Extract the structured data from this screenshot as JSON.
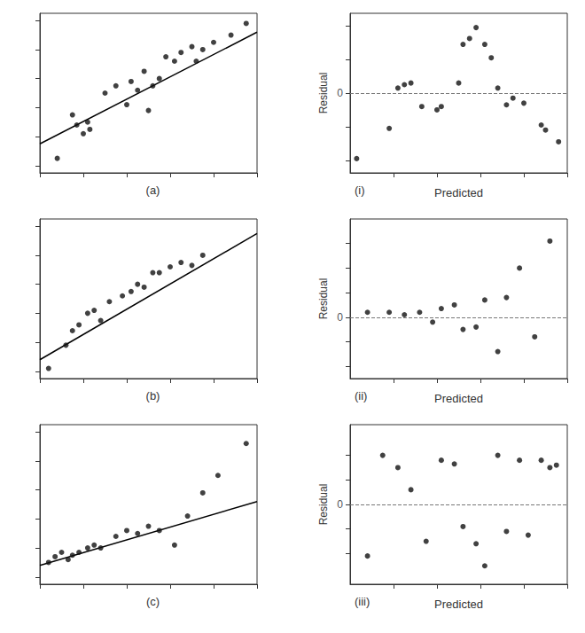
{
  "chart_data": [
    {
      "type": "scatter",
      "title": "(a)",
      "series": [
        {
          "type": "scatter",
          "marker": "circle",
          "color": "#111111",
          "x": [
            0.08,
            0.15,
            0.17,
            0.2,
            0.22,
            0.23,
            0.3,
            0.35,
            0.4,
            0.42,
            0.45,
            0.48,
            0.5,
            0.52,
            0.55,
            0.58,
            0.62,
            0.65,
            0.7,
            0.72,
            0.75,
            0.8,
            0.88,
            0.95
          ],
          "values": [
            0.05,
            0.35,
            0.28,
            0.22,
            0.3,
            0.25,
            0.5,
            0.55,
            0.42,
            0.58,
            0.52,
            0.65,
            0.38,
            0.55,
            0.6,
            0.75,
            0.72,
            0.78,
            0.82,
            0.72,
            0.8,
            0.85,
            0.9,
            0.98
          ]
        },
        {
          "type": "line",
          "line_style": "solid",
          "color": "#000000",
          "x": [
            0.0,
            1.0
          ],
          "values": [
            0.15,
            0.92
          ]
        }
      ],
      "xlim": [
        0,
        1
      ],
      "ylim": [
        -0.05,
        1.05
      ],
      "xticks": [
        0,
        0.2,
        0.4,
        0.6,
        0.8,
        1
      ],
      "yticks": [
        0,
        0.2,
        0.4,
        0.6,
        0.8,
        1
      ],
      "grid": false,
      "tick_labels": false
    },
    {
      "type": "scatter",
      "title": "(i)",
      "xlabel": "Predicted",
      "ylabel": "Residual",
      "series": [
        {
          "type": "scatter",
          "marker": "circle",
          "color": "#111111",
          "x": [
            0.03,
            0.18,
            0.22,
            0.25,
            0.28,
            0.33,
            0.4,
            0.42,
            0.5,
            0.52,
            0.55,
            0.58,
            0.62,
            0.65,
            0.68,
            0.72,
            0.75,
            0.8,
            0.88,
            0.9,
            0.96
          ],
          "values": [
            -0.78,
            -0.42,
            0.06,
            0.1,
            0.12,
            -0.16,
            -0.2,
            -0.16,
            0.12,
            0.58,
            0.65,
            0.78,
            0.58,
            0.42,
            0.06,
            -0.14,
            -0.06,
            -0.12,
            -0.38,
            -0.44,
            -0.58
          ]
        }
      ],
      "hline": {
        "y": 0,
        "color": "#777777",
        "line_style": "dashed"
      },
      "annotations": [
        {
          "text": "0",
          "y": 0
        }
      ],
      "xlim": [
        0,
        1
      ],
      "ylim": [
        -0.95,
        0.95
      ],
      "xticks": [
        0.2,
        0.4,
        0.6,
        0.8,
        1
      ],
      "yticks": [
        -0.8,
        -0.4,
        0,
        0.4,
        0.8
      ],
      "grid": false,
      "tick_labels": false
    },
    {
      "type": "scatter",
      "title": "(b)",
      "series": [
        {
          "type": "scatter",
          "marker": "circle",
          "color": "#111111",
          "x": [
            0.04,
            0.12,
            0.15,
            0.18,
            0.22,
            0.25,
            0.28,
            0.32,
            0.38,
            0.42,
            0.45,
            0.48,
            0.52,
            0.55,
            0.6,
            0.65,
            0.7,
            0.75
          ],
          "values": [
            0.02,
            0.18,
            0.28,
            0.32,
            0.4,
            0.42,
            0.35,
            0.48,
            0.52,
            0.55,
            0.6,
            0.58,
            0.68,
            0.68,
            0.72,
            0.75,
            0.73,
            0.8
          ]
        },
        {
          "type": "line",
          "line_style": "solid",
          "color": "#000000",
          "x": [
            0.0,
            1.0
          ],
          "values": [
            0.08,
            0.95
          ]
        }
      ],
      "xlim": [
        0,
        1
      ],
      "ylim": [
        -0.05,
        1.05
      ],
      "xticks": [
        0,
        0.2,
        0.4,
        0.6,
        0.8,
        1
      ],
      "yticks": [
        0,
        0.2,
        0.4,
        0.6,
        0.8,
        1
      ],
      "grid": false,
      "tick_labels": false
    },
    {
      "type": "scatter",
      "title": "(ii)",
      "xlabel": "Predicted",
      "ylabel": "Residual",
      "series": [
        {
          "type": "scatter",
          "marker": "circle",
          "color": "#111111",
          "x": [
            0.08,
            0.18,
            0.25,
            0.32,
            0.38,
            0.42,
            0.48,
            0.52,
            0.58,
            0.62,
            0.68,
            0.72,
            0.78,
            0.85,
            0.92
          ],
          "values": [
            0.04,
            0.04,
            0.02,
            0.04,
            -0.04,
            0.07,
            0.1,
            -0.1,
            -0.08,
            0.14,
            -0.28,
            0.16,
            0.4,
            -0.16,
            0.62
          ]
        }
      ],
      "hline": {
        "y": 0,
        "color": "#777777",
        "line_style": "dashed"
      },
      "annotations": [
        {
          "text": "0",
          "y": 0
        }
      ],
      "xlim": [
        0,
        1
      ],
      "ylim": [
        -0.5,
        0.8
      ],
      "xticks": [
        0.2,
        0.4,
        0.6,
        0.8,
        1
      ],
      "yticks": [
        -0.4,
        -0.2,
        0,
        0.2,
        0.4,
        0.6
      ],
      "grid": false,
      "tick_labels": false
    },
    {
      "type": "scatter",
      "title": "(c)",
      "series": [
        {
          "type": "scatter",
          "marker": "circle",
          "color": "#111111",
          "x": [
            0.04,
            0.07,
            0.1,
            0.13,
            0.15,
            0.18,
            0.22,
            0.25,
            0.28,
            0.35,
            0.4,
            0.45,
            0.5,
            0.55,
            0.62,
            0.68,
            0.75,
            0.82,
            0.95
          ],
          "values": [
            0.1,
            0.14,
            0.17,
            0.12,
            0.15,
            0.17,
            0.2,
            0.22,
            0.2,
            0.28,
            0.32,
            0.3,
            0.35,
            0.32,
            0.22,
            0.42,
            0.58,
            0.7,
            0.92
          ]
        },
        {
          "type": "line",
          "line_style": "solid",
          "color": "#000000",
          "x": [
            0.0,
            1.0
          ],
          "values": [
            0.08,
            0.52
          ]
        }
      ],
      "xlim": [
        0,
        1
      ],
      "ylim": [
        -0.05,
        1.05
      ],
      "xticks": [
        0,
        0.2,
        0.4,
        0.6,
        0.8,
        1
      ],
      "yticks": [
        0,
        0.2,
        0.4,
        0.6,
        0.8,
        1
      ],
      "grid": false,
      "tick_labels": false
    },
    {
      "type": "scatter",
      "title": "(iii)",
      "xlabel": "Predicted",
      "ylabel": "Residual",
      "series": [
        {
          "type": "scatter",
          "marker": "circle",
          "color": "#111111",
          "x": [
            0.08,
            0.15,
            0.22,
            0.28,
            0.35,
            0.42,
            0.48,
            0.52,
            0.58,
            0.62,
            0.68,
            0.72,
            0.78,
            0.82,
            0.88,
            0.92,
            0.95
          ],
          "values": [
            -0.42,
            0.4,
            0.3,
            0.12,
            -0.3,
            0.36,
            0.33,
            -0.18,
            -0.32,
            -0.5,
            0.4,
            -0.22,
            0.36,
            -0.25,
            0.36,
            0.3,
            0.32
          ]
        }
      ],
      "hline": {
        "y": 0,
        "color": "#777777",
        "line_style": "dashed"
      },
      "annotations": [
        {
          "text": "0",
          "y": 0
        }
      ],
      "xlim": [
        0,
        1
      ],
      "ylim": [
        -0.65,
        0.65
      ],
      "xticks": [
        0.2,
        0.4,
        0.6,
        0.8,
        1
      ],
      "yticks": [
        -0.4,
        -0.2,
        0,
        0.2,
        0.4
      ],
      "grid": false,
      "tick_labels": false
    }
  ]
}
